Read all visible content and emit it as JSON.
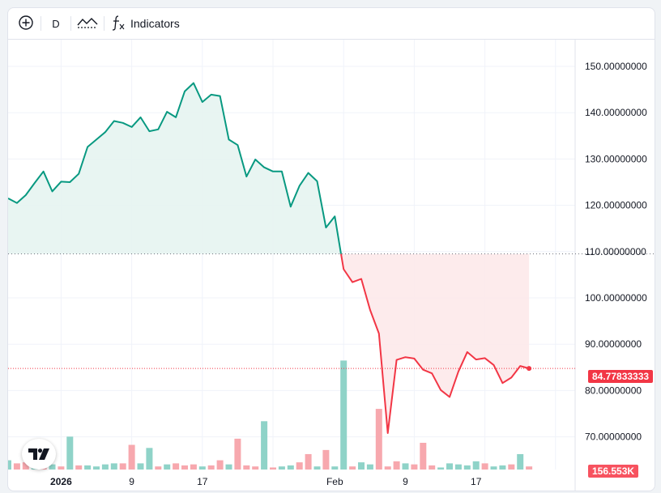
{
  "toolbar": {
    "add_icon": "plus-circle-icon",
    "interval": "D",
    "chart_type_icon": "line-area-icon",
    "indicators_icon": "fx-icon",
    "indicators_label": "Indicators"
  },
  "logo": "tradingview-logo",
  "colors": {
    "up_line": "#089981",
    "down_line": "#f23645",
    "up_fill": "#e6f4f1",
    "down_fill": "#fde9ea",
    "vol_up": "#8fd3c8",
    "vol_down": "#f7a8ae",
    "baseline_dots": "#6a6d78",
    "last_price_dots": "#f23645"
  },
  "price_axis": {
    "ticks": [
      "150.00000000",
      "140.00000000",
      "130.00000000",
      "120.00000000",
      "110.00000000",
      "100.00000000",
      "90.00000000",
      "80.00000000",
      "70.00000000"
    ],
    "last_price_label": "84.77833333",
    "volume_label": "156.553K"
  },
  "time_axis": {
    "labels": [
      {
        "text": "2026",
        "idx": 6,
        "bold": true
      },
      {
        "text": "9",
        "idx": 14,
        "bold": false
      },
      {
        "text": "17",
        "idx": 22,
        "bold": false
      },
      {
        "text": "Feb",
        "idx": 37,
        "bold": false
      },
      {
        "text": "9",
        "idx": 45,
        "bold": false
      },
      {
        "text": "17",
        "idx": 53,
        "bold": false
      }
    ]
  },
  "chart_data": {
    "type": "line",
    "baseline": 109.5,
    "last_value": 84.77833333,
    "ylim": [
      64.5,
      159.0
    ],
    "price": [
      121.5,
      120.5,
      122.2,
      124.8,
      127.3,
      123.0,
      125.1,
      125.0,
      126.8,
      132.6,
      134.2,
      135.8,
      138.2,
      137.8,
      136.9,
      139.0,
      136.0,
      136.4,
      140.2,
      139.0,
      144.6,
      146.4,
      142.3,
      143.9,
      143.6,
      134.2,
      133.0,
      126.2,
      129.9,
      128.2,
      127.3,
      127.3,
      119.7,
      124.2,
      127.0,
      125.2,
      115.2,
      117.6,
      106.2,
      103.4,
      104.1,
      97.4,
      92.3,
      70.8,
      86.6,
      87.2,
      86.9,
      84.5,
      83.7,
      80.1,
      78.6,
      84.1,
      88.3,
      86.7,
      87.0,
      85.5,
      81.6,
      82.8,
      85.3,
      84.77833333
    ],
    "volume": [
      9,
      6,
      7,
      14,
      2,
      5,
      3,
      32,
      4,
      4,
      3,
      5,
      6,
      6,
      24,
      6,
      21,
      3,
      5,
      6,
      4,
      5,
      3,
      4,
      9,
      5,
      30,
      4,
      3,
      47,
      2,
      3,
      4,
      7,
      15,
      3,
      19,
      3,
      106,
      3,
      7,
      5,
      59,
      3,
      8,
      6,
      5,
      26,
      4,
      2,
      6,
      5,
      4,
      8,
      6,
      3,
      4,
      5,
      15,
      3
    ],
    "volume_up": [
      true,
      false,
      false,
      true,
      false,
      true,
      false,
      true,
      false,
      true,
      true,
      true,
      true,
      false,
      false,
      true,
      true,
      false,
      true,
      false,
      false,
      false,
      true,
      false,
      false,
      true,
      false,
      false,
      false,
      true,
      false,
      true,
      true,
      false,
      false,
      true,
      false,
      true,
      true,
      false,
      true,
      true,
      false,
      false,
      false,
      true,
      false,
      false,
      false,
      true,
      true,
      true,
      true,
      true,
      false,
      true,
      true,
      false,
      true,
      false
    ]
  }
}
